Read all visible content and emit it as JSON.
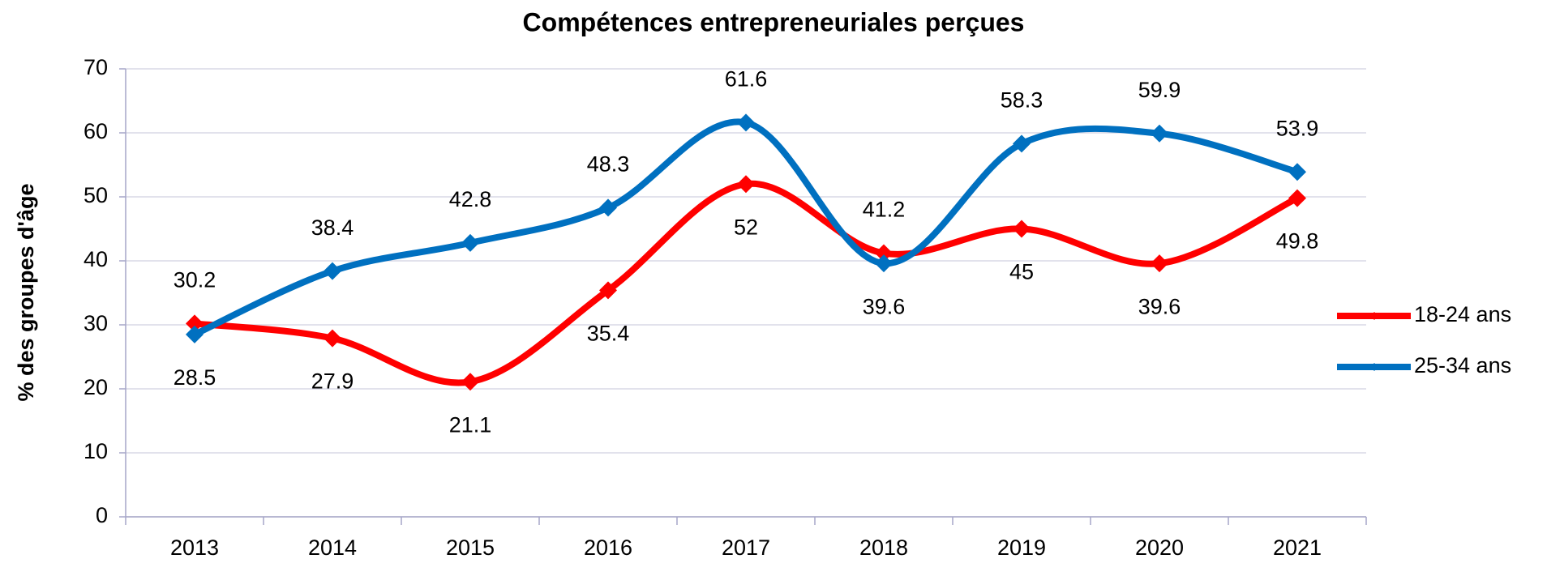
{
  "chart_data": {
    "type": "line",
    "title": "Compétences entrepreneuriales perçues",
    "y_label": "% des groupes d'âge",
    "categories": [
      "2013",
      "2014",
      "2015",
      "2016",
      "2017",
      "2018",
      "2019",
      "2020",
      "2021"
    ],
    "series": [
      {
        "name": "18-24 ans",
        "color": "#ff0000",
        "values": [
          30.2,
          27.9,
          21.1,
          35.4,
          52,
          41.2,
          45,
          39.6,
          49.8
        ]
      },
      {
        "name": "25-34 ans",
        "color": "#0070c0",
        "values": [
          28.5,
          38.4,
          42.8,
          48.3,
          61.6,
          39.6,
          58.3,
          59.9,
          53.9
        ]
      }
    ],
    "ylim": [
      0,
      70
    ],
    "yticks": [
      0,
      10,
      20,
      30,
      40,
      50,
      60,
      70
    ],
    "grid": true,
    "legend": "right",
    "smooth": true
  }
}
